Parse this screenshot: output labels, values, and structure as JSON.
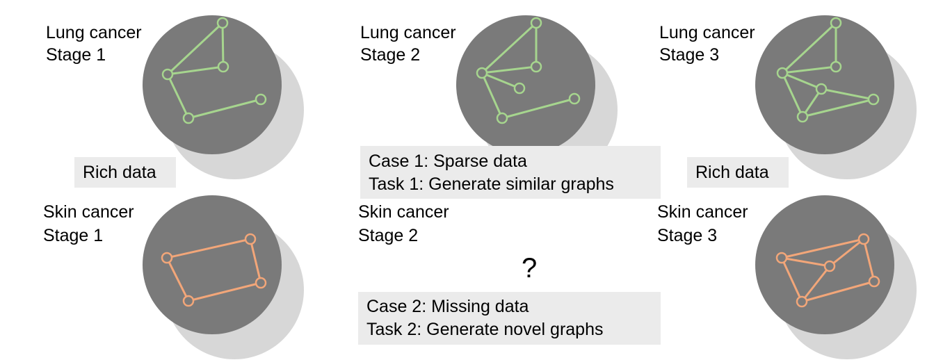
{
  "colors": {
    "circle": "#7a7a7a",
    "shadow": "#d7d7d7",
    "lung_edge": "#a6d58e",
    "skin_edge": "#f2a679",
    "box_bg": "#ebebeb"
  },
  "panels": {
    "lung1": {
      "title": "Lung cancer",
      "stage": "Stage 1"
    },
    "lung2": {
      "title": "Lung cancer",
      "stage": "Stage 2"
    },
    "lung3": {
      "title": "Lung cancer",
      "stage": "Stage 3"
    },
    "skin1": {
      "title": "Skin cancer",
      "stage": "Stage 1"
    },
    "skin2": {
      "title": "Skin cancer",
      "stage": "Stage 2"
    },
    "skin3": {
      "title": "Skin cancer",
      "stage": "Stage 3"
    }
  },
  "boxes": {
    "rich_left": "Rich data",
    "rich_right": "Rich data",
    "case1": {
      "line1": "Case 1: Sparse data",
      "line2": "Task 1: Generate similar graphs"
    },
    "case2": {
      "line1": "Case 2: Missing data",
      "line2": "Task 2: Generate novel graphs"
    }
  },
  "missing_mark": "?"
}
